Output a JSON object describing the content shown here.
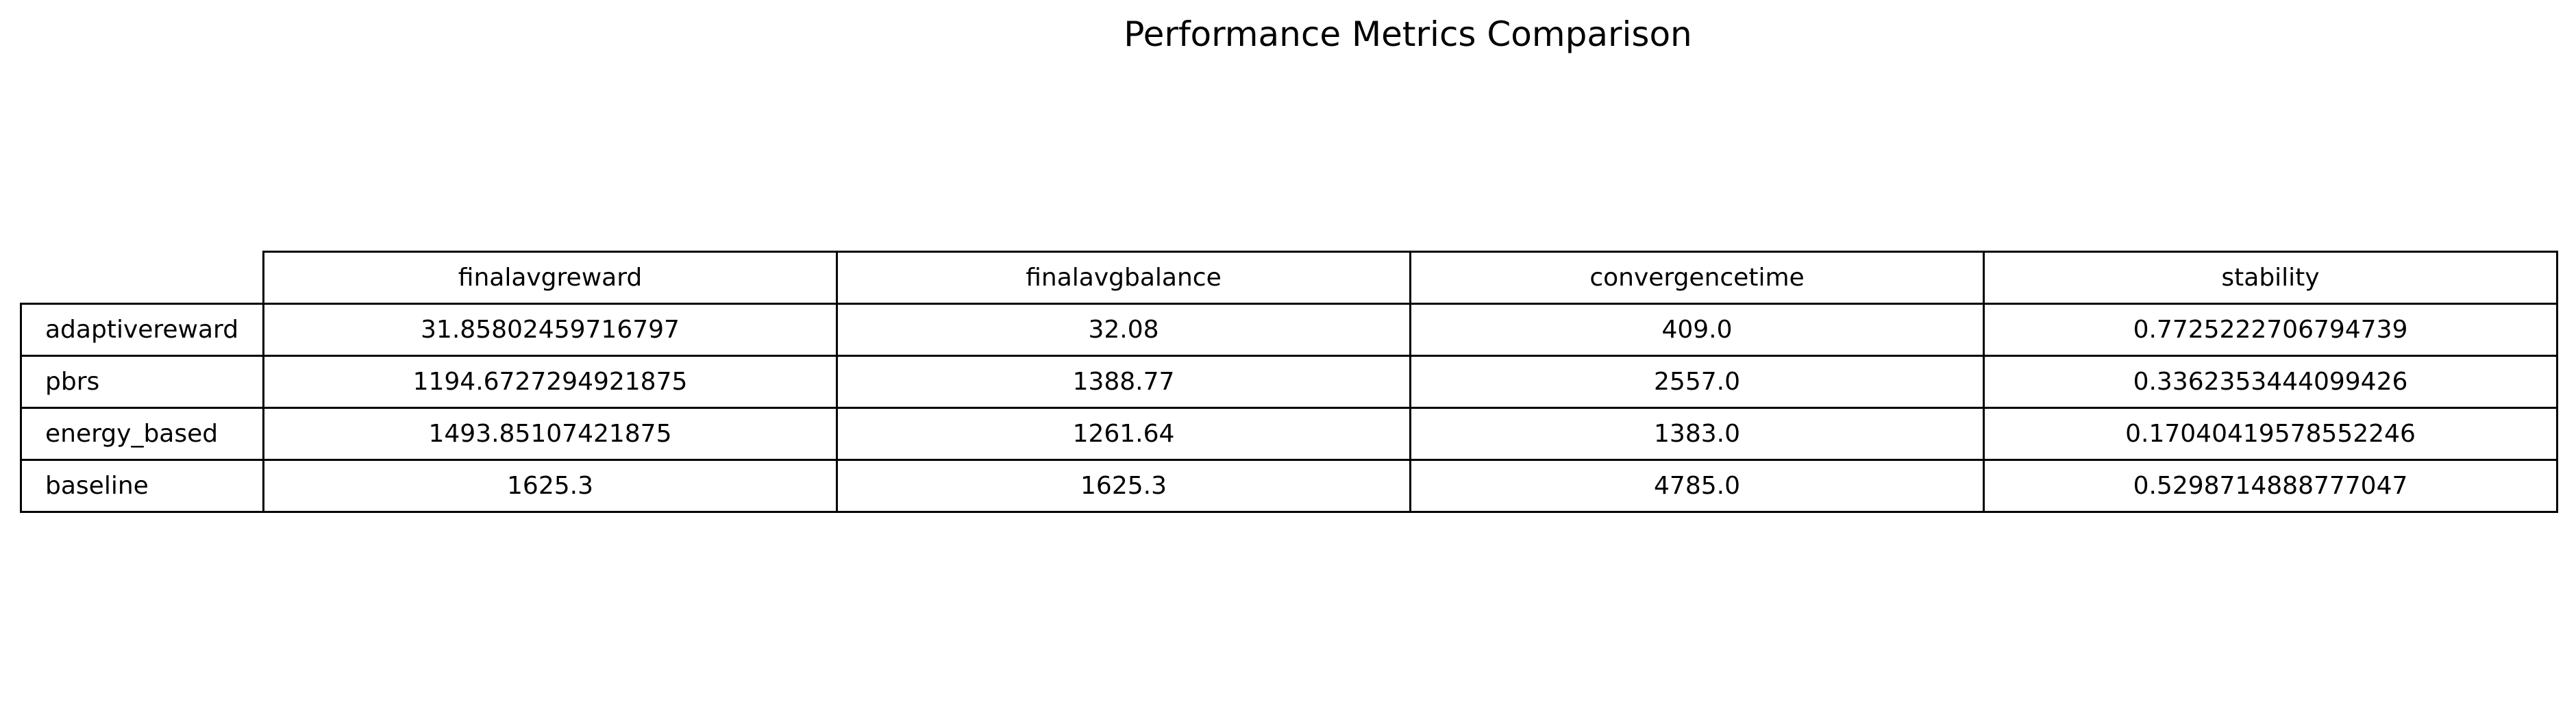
{
  "chart_data": {
    "type": "table",
    "title": "Performance Metrics Comparison",
    "columns": [
      "finalavgreward",
      "finalavgbalance",
      "convergencetime",
      "stability"
    ],
    "rows": [
      {
        "label": "adaptivereward",
        "values": [
          "31.85802459716797",
          "32.08",
          "409.0",
          "0.7725222706794739"
        ]
      },
      {
        "label": "pbrs",
        "values": [
          "1194.6727294921875",
          "1388.77",
          "2557.0",
          "0.3362353444099426"
        ]
      },
      {
        "label": "energy_based",
        "values": [
          "1493.85107421875",
          "1261.64",
          "1383.0",
          "0.17040419578552246"
        ]
      },
      {
        "label": "baseline",
        "values": [
          "1625.3",
          "1625.3",
          "4785.0",
          "0.5298714888777047"
        ]
      }
    ]
  }
}
